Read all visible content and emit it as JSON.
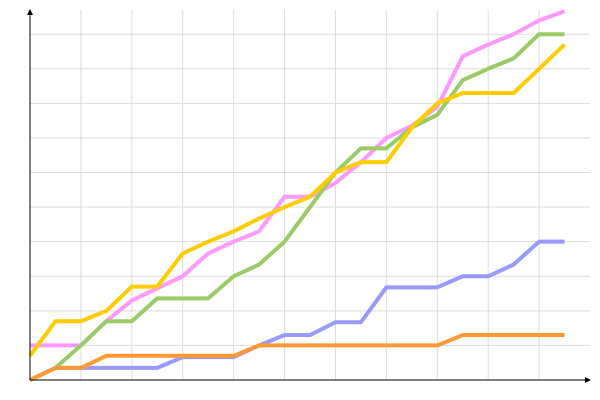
{
  "chart_data": {
    "type": "line",
    "x": [
      0,
      1,
      2,
      3,
      4,
      5,
      6,
      7,
      8,
      9,
      10,
      11,
      12,
      13,
      14,
      15,
      16,
      17,
      18,
      19,
      20,
      21
    ],
    "xlim": [
      0,
      22
    ],
    "xticks": [
      2,
      4,
      6,
      8,
      10,
      12,
      14,
      16,
      18,
      20
    ],
    "ylim": [
      0,
      107
    ],
    "yticks": [
      10,
      20,
      30,
      40,
      50,
      60,
      70,
      80,
      90,
      100
    ],
    "grid": true,
    "series": [
      {
        "color": "#ff99ff",
        "values": [
          10,
          10,
          10,
          17,
          23,
          26.5,
          30,
          36.6,
          40,
          43,
          53,
          53,
          57,
          63,
          70,
          73.5,
          79,
          93.6,
          97,
          100,
          104,
          106.6
        ]
      },
      {
        "color": "#99cc66",
        "values": [
          0,
          3.5,
          10,
          17,
          17,
          23.6,
          23.6,
          23.6,
          30,
          33.4,
          40,
          50,
          60,
          67,
          67,
          73,
          76.7,
          86.7,
          90,
          93,
          100,
          100
        ]
      },
      {
        "color": "#ffcc00",
        "values": [
          7,
          17,
          17,
          20,
          27,
          27,
          36.6,
          40,
          43,
          46.7,
          50,
          53,
          60,
          63,
          63,
          73,
          80,
          83,
          83,
          83,
          90,
          97
        ]
      },
      {
        "color": "#9999ff",
        "values": [
          0,
          3.5,
          3.5,
          3.5,
          3.5,
          3.5,
          6.6,
          6.6,
          6.6,
          10,
          13,
          13,
          16.7,
          16.7,
          26.8,
          26.8,
          26.8,
          30,
          30,
          33.4,
          40,
          40
        ]
      },
      {
        "color": "#ff9933",
        "values": [
          0,
          3.5,
          3.5,
          7,
          7,
          7,
          7,
          7,
          7,
          10,
          10,
          10,
          10,
          10,
          10,
          10,
          10,
          13,
          13,
          13,
          13,
          13
        ]
      }
    ]
  }
}
